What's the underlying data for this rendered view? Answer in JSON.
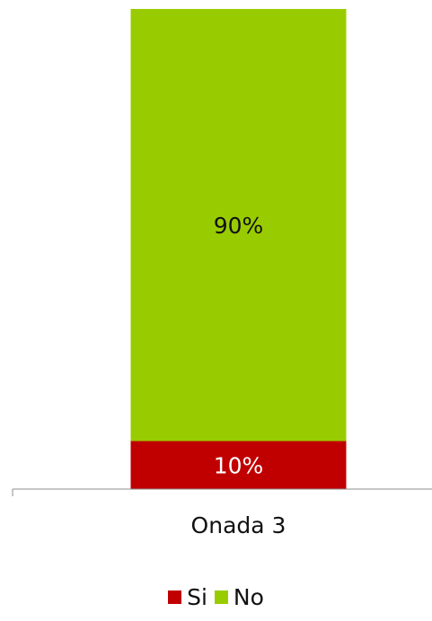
{
  "chart_data": {
    "type": "bar",
    "stacked": true,
    "percent_stacked": true,
    "categories": [
      "Onada 3"
    ],
    "series": [
      {
        "name": "Si",
        "values": [
          10
        ],
        "label": "10%",
        "color": "#c00000",
        "label_color": "#ffffff"
      },
      {
        "name": "No",
        "values": [
          90
        ],
        "label": "90%",
        "color": "#99cc00",
        "label_color": "#111111"
      }
    ],
    "ylim": [
      0,
      100
    ],
    "grid": false,
    "legend_placement": "bottom"
  }
}
